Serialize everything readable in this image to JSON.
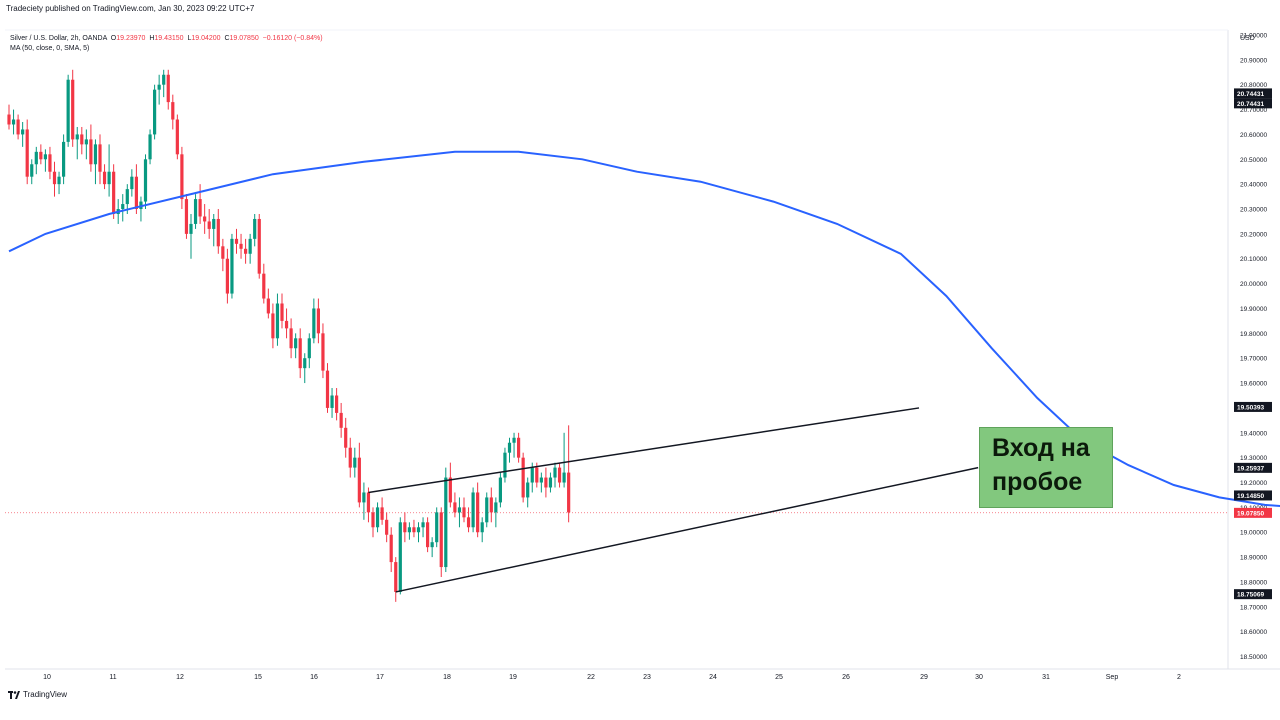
{
  "publisher_line": "Tradeciety published on TradingView.com, Jan 30, 2023 09:22 UTC+7",
  "legend": {
    "symbol": "Silver / U.S. Dollar, 2h, OANDA",
    "o_label": "O",
    "o_value": "19.23970",
    "h_label": "H",
    "h_value": "19.43150",
    "l_label": "L",
    "l_value": "19.04200",
    "c_label": "C",
    "c_value": "19.07850",
    "change": "−0.16120 (−0.84%)",
    "indicator": "MA (50, close, 0, SMA, 5)"
  },
  "footer_brand": "TradingView",
  "callout": {
    "line1": "Вход на",
    "line2": "пробое"
  },
  "colors": {
    "up": "#089981",
    "down": "#f23645",
    "ma": "#2962ff",
    "callout_bg": "#82c87e",
    "trendline": "#131722",
    "projection": "#6b8e23"
  },
  "chart_data": {
    "type": "candlestick",
    "currency": "USD",
    "ylim": [
      18.45,
      21.02
    ],
    "price_ticks": [
      "21.00000",
      "20.90000",
      "20.80000",
      "20.70000",
      "20.60000",
      "20.50000",
      "20.40000",
      "20.30000",
      "20.20000",
      "20.10000",
      "20.00000",
      "19.90000",
      "19.80000",
      "19.70000",
      "19.60000",
      "19.50000",
      "19.40000",
      "19.30000",
      "19.20000",
      "19.10000",
      "19.00000",
      "18.90000",
      "18.80000",
      "18.70000",
      "18.60000",
      "18.50000"
    ],
    "x_ticks": [
      "10",
      "11",
      "12",
      "15",
      "16",
      "17",
      "18",
      "19",
      "22",
      "23",
      "24",
      "25",
      "26",
      "29",
      "30",
      "31",
      "Sep",
      "2"
    ],
    "price_labels": [
      {
        "value": "20.74431",
        "price": 20.765
      },
      {
        "value": "20.74431",
        "price": 20.725
      },
      {
        "value": "19.50393",
        "price": 19.504
      },
      {
        "value": "19.25937",
        "price": 19.259
      },
      {
        "value": "19.14850",
        "price": 19.148
      },
      {
        "value": "19.07850",
        "price": 19.078
      },
      {
        "value": "18.75069",
        "price": 18.751
      }
    ],
    "last_close": 19.0785,
    "candles": [
      [
        20.68,
        20.72,
        20.62,
        20.64
      ],
      [
        20.64,
        20.7,
        20.6,
        20.66
      ],
      [
        20.66,
        20.68,
        20.58,
        20.6
      ],
      [
        20.6,
        20.65,
        20.55,
        20.62
      ],
      [
        20.62,
        20.66,
        20.4,
        20.43
      ],
      [
        20.43,
        20.5,
        20.4,
        20.48
      ],
      [
        20.48,
        20.55,
        20.44,
        20.53
      ],
      [
        20.53,
        20.56,
        20.48,
        20.5
      ],
      [
        20.5,
        20.54,
        20.45,
        20.52
      ],
      [
        20.52,
        20.55,
        20.42,
        20.45
      ],
      [
        20.45,
        20.49,
        20.35,
        20.4
      ],
      [
        20.4,
        20.45,
        20.36,
        20.43
      ],
      [
        20.43,
        20.6,
        20.4,
        20.57
      ],
      [
        20.57,
        20.84,
        20.55,
        20.82
      ],
      [
        20.82,
        20.86,
        20.55,
        20.58
      ],
      [
        20.58,
        20.63,
        20.5,
        20.6
      ],
      [
        20.6,
        20.63,
        20.52,
        20.56
      ],
      [
        20.56,
        20.62,
        20.5,
        20.58
      ],
      [
        20.58,
        20.64,
        20.45,
        20.48
      ],
      [
        20.48,
        20.58,
        20.4,
        20.56
      ],
      [
        20.56,
        20.6,
        20.4,
        20.45
      ],
      [
        20.45,
        20.48,
        20.38,
        20.4
      ],
      [
        20.4,
        20.56,
        20.35,
        20.45
      ],
      [
        20.45,
        20.48,
        20.26,
        20.28
      ],
      [
        20.28,
        20.34,
        20.24,
        20.3
      ],
      [
        20.3,
        20.36,
        20.25,
        20.32
      ],
      [
        20.32,
        20.4,
        20.28,
        20.38
      ],
      [
        20.38,
        20.46,
        20.35,
        20.43
      ],
      [
        20.43,
        20.48,
        20.28,
        20.3
      ],
      [
        20.3,
        20.35,
        20.25,
        20.33
      ],
      [
        20.33,
        20.52,
        20.3,
        20.5
      ],
      [
        20.5,
        20.62,
        20.48,
        20.6
      ],
      [
        20.6,
        20.8,
        20.58,
        20.78
      ],
      [
        20.78,
        20.84,
        20.72,
        20.8
      ],
      [
        20.8,
        20.86,
        20.75,
        20.84
      ],
      [
        20.84,
        20.86,
        20.7,
        20.73
      ],
      [
        20.73,
        20.76,
        20.62,
        20.66
      ],
      [
        20.66,
        20.68,
        20.5,
        20.52
      ],
      [
        20.52,
        20.55,
        20.3,
        20.34
      ],
      [
        20.34,
        20.36,
        20.18,
        20.2
      ],
      [
        20.2,
        20.28,
        20.1,
        20.24
      ],
      [
        20.24,
        20.36,
        20.22,
        20.34
      ],
      [
        20.34,
        20.4,
        20.24,
        20.27
      ],
      [
        20.27,
        20.32,
        20.2,
        20.25
      ],
      [
        20.25,
        20.3,
        20.18,
        20.22
      ],
      [
        20.22,
        20.28,
        20.15,
        20.26
      ],
      [
        20.26,
        20.3,
        20.12,
        20.15
      ],
      [
        20.15,
        20.18,
        20.05,
        20.1
      ],
      [
        20.1,
        20.14,
        19.92,
        19.96
      ],
      [
        19.96,
        20.2,
        19.94,
        20.18
      ],
      [
        20.18,
        20.22,
        20.12,
        20.16
      ],
      [
        20.16,
        20.2,
        20.1,
        20.14
      ],
      [
        20.14,
        20.18,
        20.08,
        20.12
      ],
      [
        20.12,
        20.2,
        20.08,
        20.18
      ],
      [
        20.18,
        20.28,
        20.15,
        20.26
      ],
      [
        20.26,
        20.28,
        20.02,
        20.04
      ],
      [
        20.04,
        20.08,
        19.92,
        19.94
      ],
      [
        19.94,
        19.98,
        19.86,
        19.88
      ],
      [
        19.88,
        19.92,
        19.74,
        19.78
      ],
      [
        19.78,
        19.96,
        19.75,
        19.92
      ],
      [
        19.92,
        19.96,
        19.82,
        19.85
      ],
      [
        19.85,
        19.9,
        19.78,
        19.82
      ],
      [
        19.82,
        19.86,
        19.7,
        19.74
      ],
      [
        19.74,
        19.8,
        19.7,
        19.78
      ],
      [
        19.78,
        19.82,
        19.62,
        19.66
      ],
      [
        19.66,
        19.72,
        19.6,
        19.7
      ],
      [
        19.7,
        19.8,
        19.66,
        19.78
      ],
      [
        19.78,
        19.94,
        19.76,
        19.9
      ],
      [
        19.9,
        19.94,
        19.76,
        19.8
      ],
      [
        19.8,
        19.84,
        19.62,
        19.65
      ],
      [
        19.65,
        19.68,
        19.48,
        19.5
      ],
      [
        19.5,
        19.58,
        19.46,
        19.55
      ],
      [
        19.55,
        19.58,
        19.45,
        19.48
      ],
      [
        19.48,
        19.52,
        19.38,
        19.42
      ],
      [
        19.42,
        19.46,
        19.3,
        19.34
      ],
      [
        19.34,
        19.38,
        19.22,
        19.26
      ],
      [
        19.26,
        19.34,
        19.22,
        19.3
      ],
      [
        19.3,
        19.36,
        19.1,
        19.12
      ],
      [
        19.12,
        19.2,
        19.05,
        19.16
      ],
      [
        19.16,
        19.18,
        19.04,
        19.08
      ],
      [
        19.08,
        19.1,
        18.98,
        19.02
      ],
      [
        19.02,
        19.12,
        19.0,
        19.1
      ],
      [
        19.1,
        19.14,
        19.03,
        19.05
      ],
      [
        19.05,
        19.08,
        18.96,
        18.99
      ],
      [
        18.99,
        19.02,
        18.84,
        18.88
      ],
      [
        18.88,
        18.9,
        18.72,
        18.76
      ],
      [
        18.76,
        19.06,
        18.75,
        19.04
      ],
      [
        19.04,
        19.08,
        18.96,
        19.0
      ],
      [
        19.0,
        19.04,
        18.97,
        19.02
      ],
      [
        19.02,
        19.05,
        18.98,
        19.0
      ],
      [
        19.0,
        19.04,
        18.96,
        19.02
      ],
      [
        19.02,
        19.06,
        18.98,
        19.04
      ],
      [
        19.04,
        19.06,
        18.92,
        18.94
      ],
      [
        18.94,
        18.98,
        18.9,
        18.96
      ],
      [
        18.96,
        19.1,
        18.94,
        19.08
      ],
      [
        19.08,
        19.1,
        18.82,
        18.86
      ],
      [
        18.86,
        19.26,
        18.84,
        19.22
      ],
      [
        19.22,
        19.28,
        19.1,
        19.12
      ],
      [
        19.12,
        19.16,
        19.06,
        19.08
      ],
      [
        19.08,
        19.14,
        19.02,
        19.1
      ],
      [
        19.1,
        19.14,
        19.04,
        19.06
      ],
      [
        19.06,
        19.1,
        19.0,
        19.02
      ],
      [
        19.02,
        19.18,
        19.0,
        19.16
      ],
      [
        19.16,
        19.2,
        18.98,
        19.0
      ],
      [
        19.0,
        19.06,
        18.96,
        19.04
      ],
      [
        19.04,
        19.16,
        19.02,
        19.14
      ],
      [
        19.14,
        19.18,
        19.04,
        19.08
      ],
      [
        19.08,
        19.14,
        19.02,
        19.12
      ],
      [
        19.12,
        19.24,
        19.1,
        19.22
      ],
      [
        19.22,
        19.34,
        19.2,
        19.32
      ],
      [
        19.32,
        19.38,
        19.28,
        19.36
      ],
      [
        19.36,
        19.4,
        19.3,
        19.38
      ],
      [
        19.38,
        19.4,
        19.28,
        19.3
      ],
      [
        19.3,
        19.32,
        19.12,
        19.14
      ],
      [
        19.14,
        19.22,
        19.1,
        19.2
      ],
      [
        19.2,
        19.28,
        19.16,
        19.26
      ],
      [
        19.26,
        19.28,
        19.18,
        19.2
      ],
      [
        19.2,
        19.24,
        19.16,
        19.22
      ],
      [
        19.22,
        19.26,
        19.14,
        19.18
      ],
      [
        19.18,
        19.24,
        19.16,
        19.22
      ],
      [
        19.22,
        19.28,
        19.18,
        19.26
      ],
      [
        19.26,
        19.28,
        19.18,
        19.2
      ],
      [
        19.2,
        19.4,
        19.18,
        19.24
      ],
      [
        19.24,
        19.43,
        19.04,
        19.08
      ]
    ],
    "ma_line": [
      [
        20.13,
        0
      ],
      [
        20.2,
        8
      ],
      [
        20.28,
        22
      ],
      [
        20.36,
        40
      ],
      [
        20.44,
        58
      ],
      [
        20.49,
        78
      ],
      [
        20.53,
        98
      ],
      [
        20.53,
        112
      ],
      [
        20.5,
        126
      ],
      [
        20.45,
        138
      ],
      [
        20.41,
        152
      ],
      [
        20.33,
        168
      ],
      [
        20.24,
        182
      ],
      [
        20.12,
        196
      ],
      [
        19.95,
        206
      ],
      [
        19.74,
        216
      ],
      [
        19.54,
        226
      ],
      [
        19.37,
        236
      ],
      [
        19.27,
        246
      ],
      [
        19.19,
        256
      ],
      [
        19.14,
        266
      ],
      [
        19.11,
        276
      ],
      [
        19.1,
        284
      ],
      [
        19.11,
        292
      ],
      [
        19.14,
        297
      ]
    ],
    "annotations": [
      {
        "type": "trendline",
        "from": {
          "candle": 79,
          "price": 19.16
        },
        "to": {
          "candle": 200,
          "price": 19.5
        }
      },
      {
        "type": "trendline",
        "from": {
          "candle": 85,
          "price": 18.76
        },
        "to": {
          "candle": 213,
          "price": 19.26
        }
      },
      {
        "type": "trendline",
        "from": {
          "candle": 226,
          "price": 19.1
        },
        "to": {
          "candle": 240,
          "price": 19.37
        }
      }
    ]
  }
}
